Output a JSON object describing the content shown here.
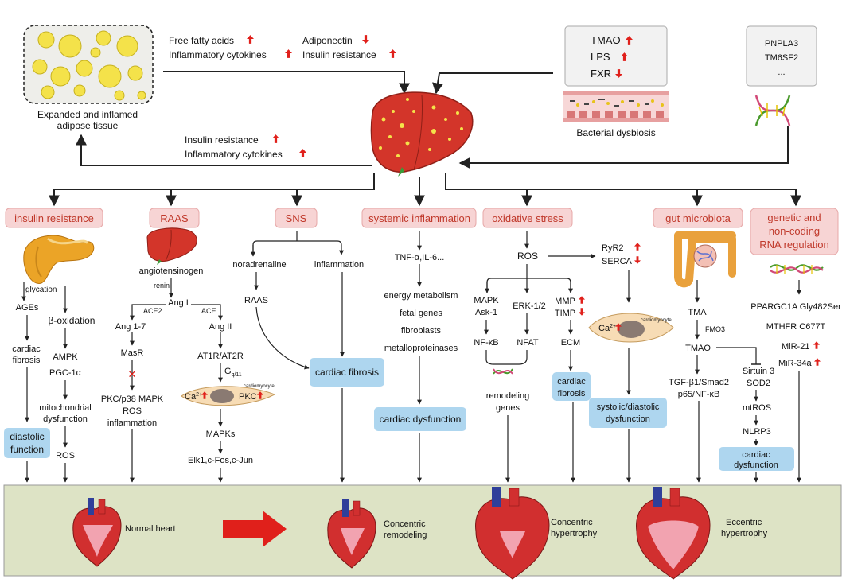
{
  "top": {
    "adipose_label_1": "Expanded and inflamed",
    "adipose_label_2": "adipose tissue",
    "ffa": "Free fatty acids",
    "infl_cyt": "Inflammatory cytokines",
    "adiponectin": "Adiponectin",
    "ins_res": "Insulin resistance",
    "back_ins_res": "Insulin resistance",
    "back_infl_cyt": "Inflammatory cytokines",
    "gut_box": [
      "TMAO",
      "LPS",
      "FXR"
    ],
    "bacterial": "Bacterial dysbiosis",
    "genes_box": [
      "PNPLA3",
      "TM6SF2",
      "..."
    ]
  },
  "headers": {
    "insulin": "insulin resistance",
    "raas": "RAAS",
    "sns": "SNS",
    "systemic": "systemic inflammation",
    "oxidative": "oxidative stress",
    "gut": "gut microbiota",
    "genetic_1": "genetic and",
    "genetic_2": "non-coding",
    "genetic_3": "RNA regulation"
  },
  "insulin_col": {
    "glycation": "glycation",
    "ages": "AGEs",
    "beta_ox": "β-oxidation",
    "cardiac": "cardiac",
    "fibrosis": "fibrosis",
    "ampk": "AMPK",
    "pgc": "PGC-1α",
    "mito_1": "mitochondrial",
    "mito_2": "dysfunction",
    "diastolic_1": "diastolic",
    "diastolic_2": "function",
    "ros": "ROS"
  },
  "raas_col": {
    "angiotensinogen": "angiotensinogen",
    "renin": "renin",
    "ang1": "Ang I",
    "ace2": "ACE2",
    "ace": "ACE",
    "ang17": "Ang 1-7",
    "ang2": "Ang II",
    "masr": "MasR",
    "at1r": "AT1R/AT2R",
    "gq_base": "G",
    "gq_sub": "q/11",
    "pkc_list": "PKC/p38 MAPK",
    "ros": "ROS",
    "inflammation": "inflammation",
    "cardiomyocyte": "cardiomyocyte",
    "ca": "Ca",
    "ca_sup": "2+",
    "pkc": "PKC",
    "mapks": "MAPKs",
    "elk": "Elk1,c-Fos,c-Jun"
  },
  "sns_col": {
    "noradrenaline": "noradrenaline",
    "inflammation": "inflammation",
    "raas": "RAAS",
    "cardiac_fibrosis": "cardiac fibrosis"
  },
  "systemic_col": {
    "tnf": "TNF-α,IL-6...",
    "energy": "energy metabolism",
    "fetal": "fetal genes",
    "fibroblasts": "fibroblasts",
    "mmp": "metalloproteinases",
    "dysfunction": "cardiac dysfunction"
  },
  "oxidative_col": {
    "ros": "ROS",
    "mapk": "MAPK",
    "ask": "Ask-1",
    "erk": "ERK-1/2",
    "mmp": "MMP",
    "timp": "TIMP",
    "nfkb": "NF-κB",
    "nfat": "NFAT",
    "ecm": "ECM",
    "remodeling_1": "remodeling",
    "remodeling_2": "genes",
    "cf_1": "cardiac",
    "cf_2": "fibrosis",
    "ryr2": "RyR2",
    "serca": "SERCA",
    "cardiomyocyte": "cardiomyocyte",
    "ca": "Ca",
    "ca_sup": "2+",
    "sys_1": "systolic/diastolic",
    "sys_2": "dysfunction"
  },
  "gut_col": {
    "tma": "TMA",
    "fmo3": "FMO3",
    "tmao": "TMAO",
    "tgf": "TGF-β1/Smad2",
    "p65": "p65/NF-κB",
    "sirt": "Sirtuin 3",
    "sod2": "SOD2",
    "mtros": "mtROS",
    "nlrp3": "NLRP3",
    "cd_1": "cardiac",
    "cd_2": "dysfunction"
  },
  "genetic_col": {
    "ppar": "PPARGC1A Gly482Ser",
    "mthfr": "MTHFR C677T",
    "mir21": "MiR-21",
    "mir34": "MiR-34a"
  },
  "bottom": {
    "normal": "Normal heart",
    "concentric_rem_1": "Concentric",
    "concentric_rem_2": "remodeling",
    "concentric_hyp_1": "Concentric",
    "concentric_hyp_2": "hypertrophy",
    "eccentric_1": "Eccentric",
    "eccentric_2": "hypertrophy"
  },
  "colors": {
    "header_fill": "#f7d4d4",
    "blue_box": "#aed6ef",
    "bottom_band": "#dde3c5",
    "arrow_red": "#e0201b"
  }
}
